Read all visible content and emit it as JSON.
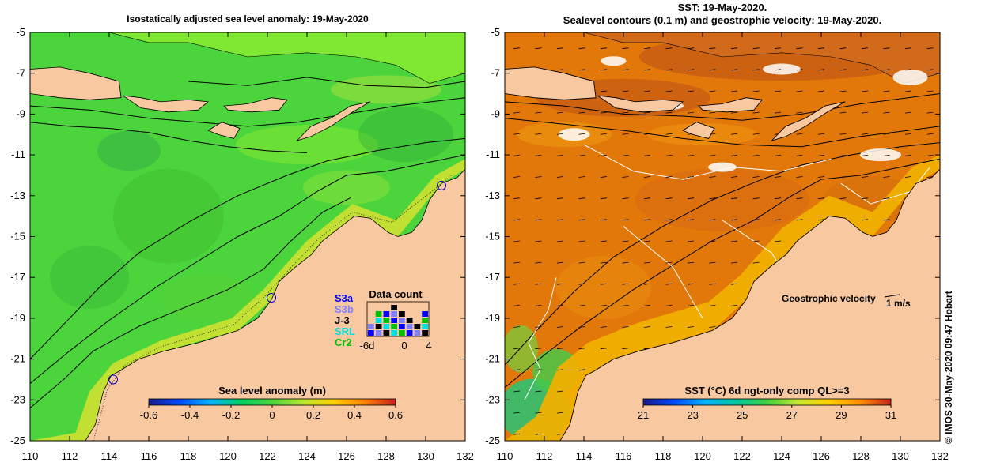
{
  "left_title": "Isostatically adjusted sea level anomaly: 19-May-2020",
  "right_title_line1": "SST: 19-May-2020.",
  "right_title_line2": "Sealevel contours (0.1 m) and geostrophic velocity: 19-May-2020.",
  "side_text": "© IMOS 30-May-2020 09:47 Hobart",
  "colors": {
    "land": "#f8c8a0",
    "sla_green": "#4cd43c",
    "sla_light": "#7ee832",
    "sst_orange": "#e2780a",
    "sst_dark": "#c45a14",
    "sst_yellow": "#f0b000",
    "contour": "#000000",
    "white_contour": "#ffffff"
  },
  "chart_data": [
    {
      "type": "heatmap",
      "title": "Isostatically adjusted sea level anomaly: 19-May-2020",
      "x_ticks": [
        "110",
        "112",
        "114",
        "116",
        "118",
        "120",
        "122",
        "124",
        "126",
        "128",
        "130",
        "132"
      ],
      "y_ticks": [
        "-5",
        "-7",
        "-9",
        "-11",
        "-13",
        "-15",
        "-17",
        "-19",
        "-21",
        "-23",
        "-25"
      ],
      "xlim": [
        110,
        132
      ],
      "ylim": [
        -25,
        -5
      ],
      "grid": false,
      "colorbar": {
        "label": "Sea level anomaly (m)",
        "ticks": [
          "-0.6",
          "-0.4",
          "-0.2",
          "0",
          "0.2",
          "0.4",
          "0.6"
        ],
        "range": [
          -0.6,
          0.6
        ]
      },
      "data_count": {
        "title": "Data count",
        "satellites": [
          "S3a",
          "S3b",
          "J-3",
          "SRL",
          "Cr2"
        ],
        "satellite_colors": [
          "#0000ff",
          "#8080ff",
          "#000000",
          "#00e0e0",
          "#00c000"
        ],
        "x_ticks": [
          "-6d",
          "0",
          "4"
        ],
        "bar_heights": [
          2,
          4,
          4,
          5,
          4,
          3,
          2,
          4
        ]
      },
      "tide_gauges": [
        {
          "lon": 130.8,
          "lat": -12.5
        },
        {
          "lon": 122.2,
          "lat": -18.0
        },
        {
          "lon": 114.2,
          "lat": -22.0
        }
      ]
    },
    {
      "type": "heatmap",
      "title": "SST: 19-May-2020. Sealevel contours (0.1 m) and geostrophic velocity: 19-May-2020.",
      "x_ticks": [
        "110",
        "112",
        "114",
        "116",
        "118",
        "120",
        "122",
        "124",
        "126",
        "128",
        "130",
        "132"
      ],
      "y_ticks": [
        "-5",
        "-7",
        "-9",
        "-11",
        "-13",
        "-15",
        "-17",
        "-19",
        "-21",
        "-23",
        "-25"
      ],
      "xlim": [
        110,
        132
      ],
      "ylim": [
        -25,
        -5
      ],
      "grid": false,
      "colorbar": {
        "label": "SST (°C) 6d ngt-only comp QL>=3",
        "ticks": [
          "21",
          "23",
          "25",
          "27",
          "29",
          "31"
        ],
        "range": [
          21,
          31
        ]
      },
      "annotation": "Geostrophic velocity",
      "velocity_scale_label": "1 m/s"
    }
  ]
}
